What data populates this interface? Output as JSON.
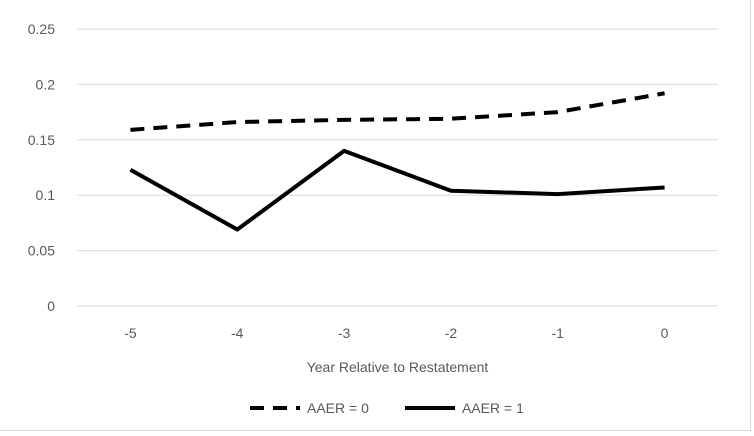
{
  "chart_data": {
    "type": "line",
    "categories": [
      "-5",
      "-4",
      "-3",
      "-2",
      "-1",
      "0"
    ],
    "x": [
      -5,
      -4,
      -3,
      -2,
      -1,
      0
    ],
    "series": [
      {
        "name": "AAER = 0",
        "values": [
          0.159,
          0.166,
          0.168,
          0.169,
          0.175,
          0.192
        ],
        "style": "dashed",
        "color": "#000000"
      },
      {
        "name": "AAER = 1",
        "values": [
          0.123,
          0.069,
          0.14,
          0.104,
          0.101,
          0.107
        ],
        "style": "solid",
        "color": "#000000"
      }
    ],
    "y_ticks": [
      "0",
      "0.05",
      "0.1",
      "0.15",
      "0.2",
      "0.25"
    ],
    "ylim": [
      0,
      0.25
    ],
    "xlabel": "Year Relative to Restatement",
    "ylabel": "",
    "title": "",
    "grid": true,
    "legend_position": "bottom",
    "gridline_color": "#d9d9d9",
    "text_color": "#595959"
  }
}
